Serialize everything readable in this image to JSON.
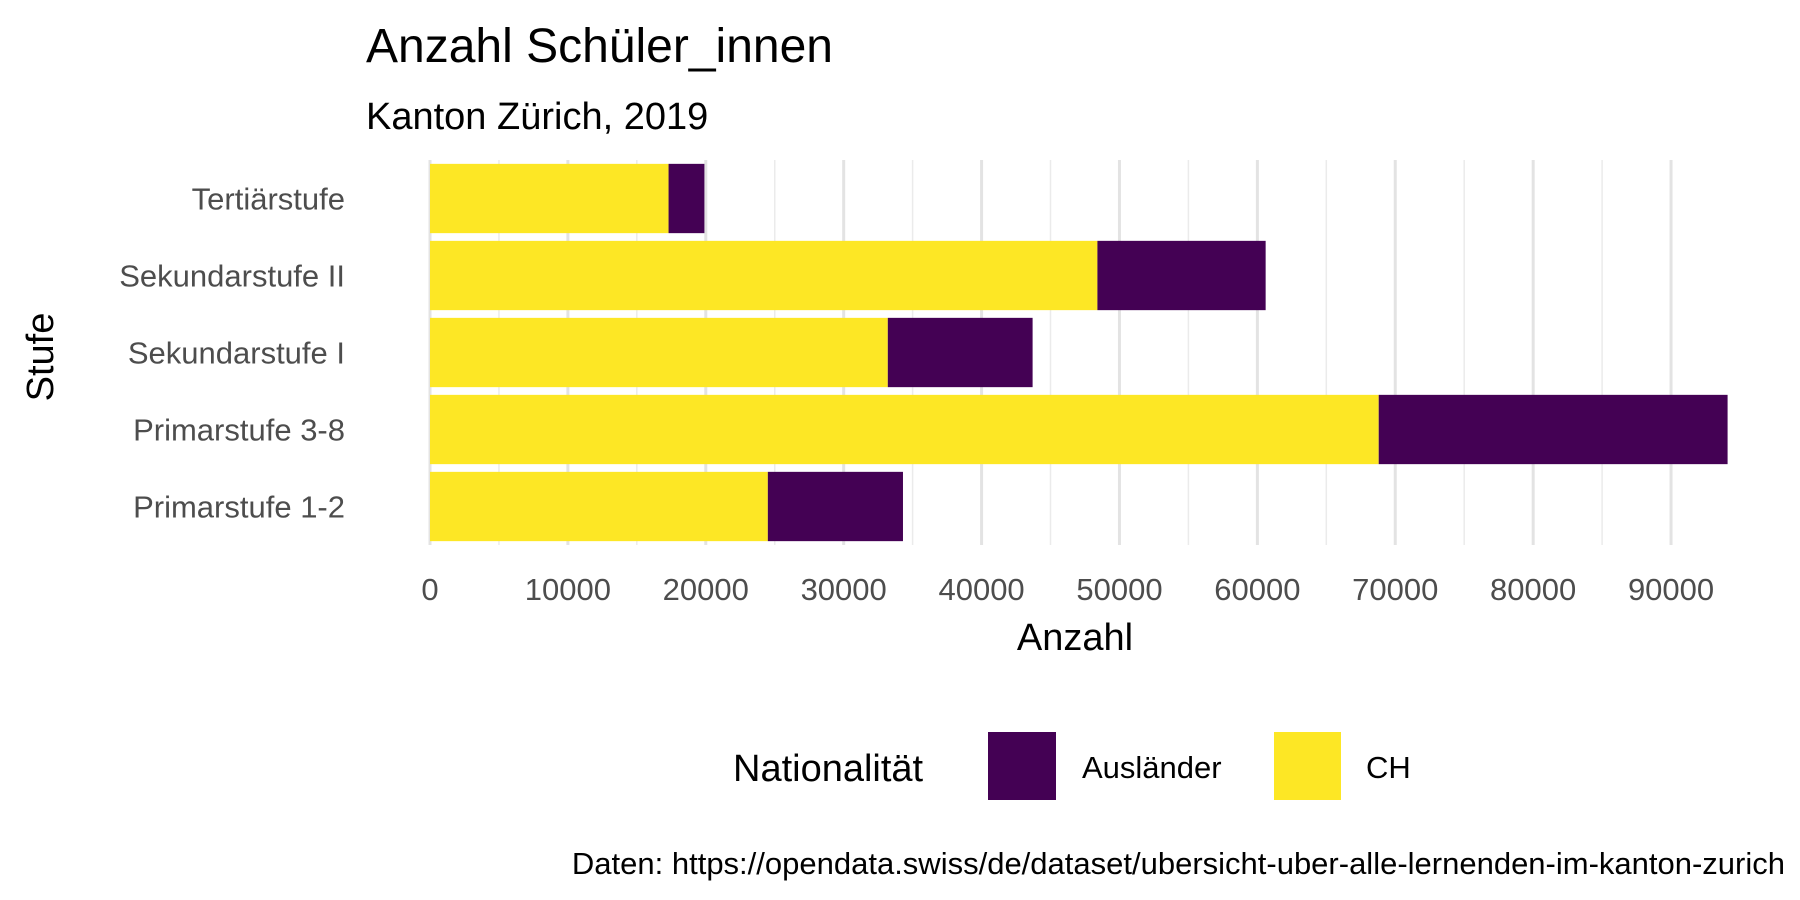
{
  "chart_data": {
    "type": "bar",
    "orientation": "horizontal",
    "stacked": true,
    "title": "Anzahl Schüler_innen",
    "subtitle": "Kanton Zürich, 2019",
    "xlabel": "Anzahl",
    "ylabel": "Stufe",
    "xlim": [
      0,
      95000
    ],
    "x_ticks": [
      0,
      10000,
      20000,
      30000,
      40000,
      50000,
      60000,
      70000,
      80000,
      90000
    ],
    "grid": true,
    "legend_title": "Nationalität",
    "legend_position": "bottom",
    "categories": [
      "Tertiärstufe",
      "Sekundarstufe II",
      "Sekundarstufe I",
      "Primarstufe 3-8",
      "Primarstufe 1-2"
    ],
    "series": [
      {
        "name": "CH",
        "color": "#FDE725",
        "values": [
          17300,
          48400,
          33200,
          68800,
          24500
        ]
      },
      {
        "name": "Ausländer",
        "color": "#440154",
        "values": [
          2600,
          12200,
          10500,
          25300,
          9800
        ]
      }
    ],
    "caption": "Daten: https://opendata.swiss/de/dataset/ubersicht-uber-alle-lernenden-im-kanton-zurich"
  }
}
